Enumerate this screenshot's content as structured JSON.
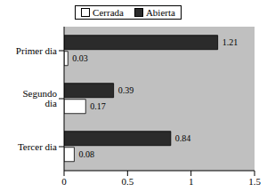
{
  "chart_data": {
    "type": "bar",
    "orientation": "horizontal",
    "categories": [
      "Primer dia",
      "Segundo dia",
      "Tercer dia"
    ],
    "series": [
      {
        "name": "Cerrada",
        "color": "#ffffff",
        "values": [
          0.03,
          0.17,
          0.08
        ]
      },
      {
        "name": "Abierta",
        "color": "#2b2b2b",
        "values": [
          1.21,
          0.39,
          0.84
        ]
      }
    ],
    "xlim": [
      0,
      1.5
    ],
    "xticks": [
      0,
      0.5,
      1,
      1.5
    ],
    "grid": false,
    "legend": "top",
    "data_labels": true
  }
}
